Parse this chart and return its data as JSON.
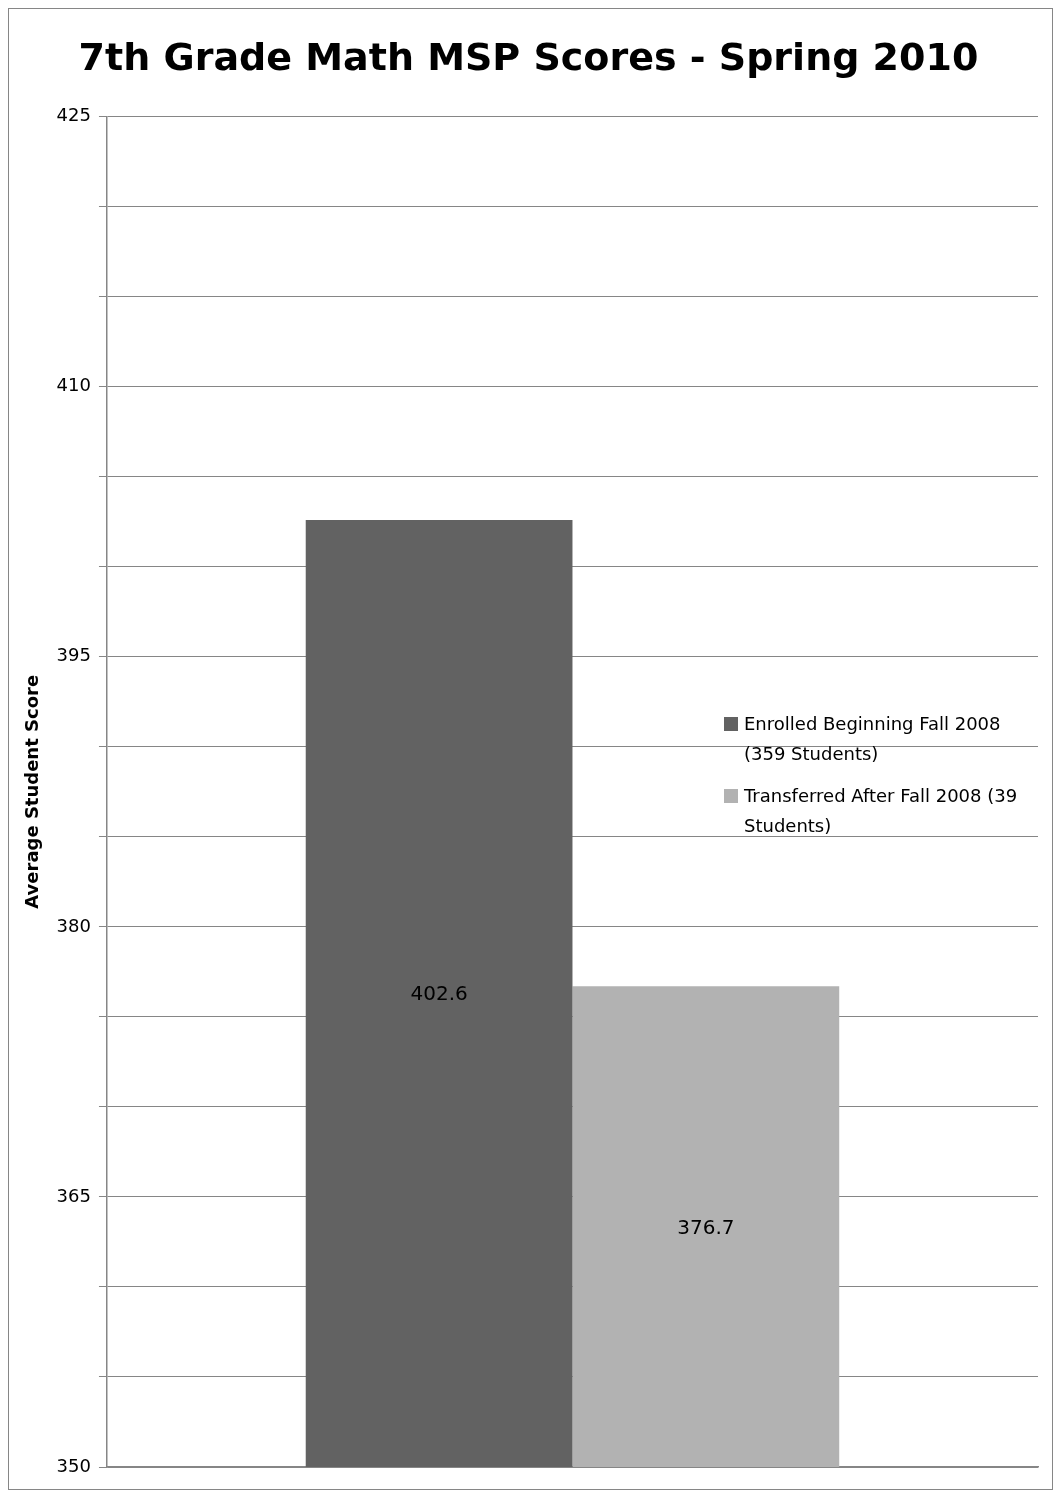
{
  "chart_data": {
    "type": "bar",
    "title": "7th Grade Math MSP Scores - Spring 2010",
    "ylabel": "Average Student Score",
    "categories": [
      null
    ],
    "series": [
      {
        "name": "Enrolled Beginning Fall 2008 (359 Students)",
        "color": "#626262",
        "values": [
          402.6
        ]
      },
      {
        "name": "Transferred After Fall 2008 (39 Students)",
        "color": "#b2b2b2",
        "values": [
          376.7
        ]
      }
    ],
    "ylim": [
      350,
      425
    ],
    "yticks": [
      350,
      {
        "value": 355,
        "label": null
      },
      {
        "value": 360,
        "label": null
      },
      365,
      {
        "value": 370,
        "label": null
      },
      {
        "value": 375,
        "label": null
      },
      380,
      {
        "value": 385,
        "label": null
      },
      {
        "value": 390,
        "label": null
      },
      395,
      {
        "value": 400,
        "label": null
      },
      {
        "value": 405,
        "label": null
      },
      410,
      {
        "value": 415,
        "label": null
      },
      {
        "value": 420,
        "label": null
      },
      425
    ],
    "grid": true,
    "legend": "right",
    "data_labels": true,
    "tick_labels": "y"
  }
}
